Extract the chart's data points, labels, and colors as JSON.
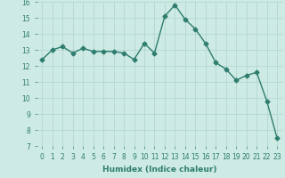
{
  "x": [
    0,
    1,
    2,
    3,
    4,
    5,
    6,
    7,
    8,
    9,
    10,
    11,
    12,
    13,
    14,
    15,
    16,
    17,
    18,
    19,
    20,
    21,
    22,
    23
  ],
  "y": [
    12.4,
    13.0,
    13.2,
    12.8,
    13.1,
    12.9,
    12.9,
    12.9,
    12.8,
    12.4,
    13.4,
    12.8,
    15.1,
    15.8,
    14.9,
    14.3,
    13.4,
    12.2,
    11.8,
    11.1,
    11.4,
    11.6,
    9.8,
    7.5
  ],
  "line_color": "#2e7d6e",
  "marker": "D",
  "marker_size": 2.5,
  "bg_color": "#cdeae4",
  "grid_color": "#afd4cc",
  "xlabel": "Humidex (Indice chaleur)",
  "ylim": [
    7,
    16
  ],
  "xlim": [
    -0.5,
    23.5
  ],
  "yticks": [
    7,
    8,
    9,
    10,
    11,
    12,
    13,
    14,
    15,
    16
  ],
  "xticks": [
    0,
    1,
    2,
    3,
    4,
    5,
    6,
    7,
    8,
    9,
    10,
    11,
    12,
    13,
    14,
    15,
    16,
    17,
    18,
    19,
    20,
    21,
    22,
    23
  ],
  "line_width": 1.0,
  "xlabel_fontsize": 6.5,
  "tick_fontsize": 5.5
}
